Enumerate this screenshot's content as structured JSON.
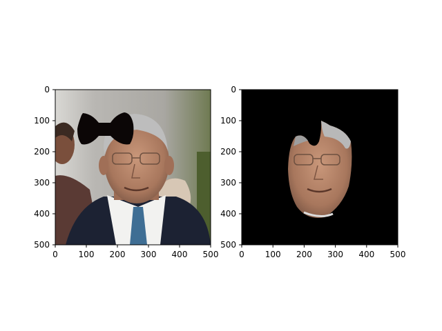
{
  "chart_data": [
    {
      "type": "image",
      "panel": "left",
      "content": "photo of a man in a suit with a black bow-tie shaped mask overlaid on the upper-left of the head",
      "xlim": [
        0,
        500
      ],
      "ylim": [
        500,
        0
      ],
      "xticks": [
        "0",
        "100",
        "200",
        "300",
        "400",
        "500"
      ],
      "yticks": [
        "0",
        "100",
        "200",
        "300",
        "400",
        "500"
      ]
    },
    {
      "type": "image",
      "panel": "right",
      "content": "segmented face region on black background",
      "xlim": [
        0,
        500
      ],
      "ylim": [
        500,
        0
      ],
      "xticks": [
        "0",
        "100",
        "200",
        "300",
        "400",
        "500"
      ],
      "yticks": [
        "0",
        "100",
        "200",
        "300",
        "400",
        "500"
      ]
    }
  ],
  "colors": {
    "mask": "#0b0606",
    "background_black": "#000000",
    "suit": "#1c2233",
    "shirt": "#f2f2f0",
    "tie": "#3f6e94",
    "skin": "#b98a6e",
    "hair": "#b8b8b8",
    "wall": "#bdbbb8"
  }
}
